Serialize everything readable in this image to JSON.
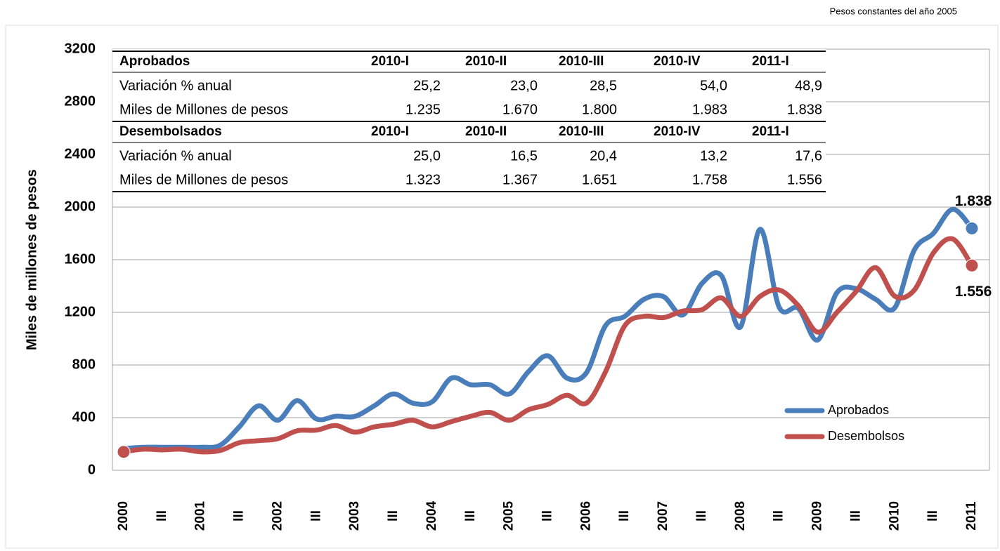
{
  "chart_data": {
    "type": "line",
    "subtitle": "Pesos constantes del año 2005",
    "y_label": "Miles de millones de pesos",
    "categories": [
      "2000",
      null,
      "III",
      null,
      "2001",
      null,
      "III",
      null,
      "2002",
      null,
      "III",
      null,
      "2003",
      null,
      "III",
      null,
      "2004",
      null,
      "III",
      null,
      "2005",
      null,
      "III",
      null,
      "2006",
      null,
      "III",
      null,
      "2007",
      null,
      "III",
      null,
      "2008",
      null,
      "III",
      null,
      "2009",
      null,
      "III",
      null,
      "2010",
      null,
      "III",
      null,
      "2011"
    ],
    "ylim": [
      0,
      3200
    ],
    "yticks": [
      0,
      400,
      800,
      1200,
      1600,
      2000,
      2400,
      2800,
      3200
    ],
    "grid": true,
    "legend": "lower right",
    "series": [
      {
        "name": "Aprobados",
        "color": "#4a7ebb",
        "values": [
          165,
          175,
          175,
          175,
          175,
          190,
          330,
          490,
          380,
          530,
          390,
          410,
          410,
          490,
          580,
          510,
          520,
          700,
          650,
          650,
          580,
          750,
          870,
          700,
          740,
          1100,
          1170,
          1300,
          1320,
          1180,
          1420,
          1480,
          1090,
          1830,
          1240,
          1230,
          990,
          1350,
          1380,
          1300,
          1235,
          1670,
          1800,
          1983,
          1838
        ],
        "value_labels": [
          null,
          null,
          null,
          null,
          null,
          null,
          null,
          null,
          null,
          null,
          null,
          null,
          null,
          null,
          null,
          null,
          null,
          null,
          null,
          null,
          null,
          null,
          null,
          null,
          null,
          null,
          null,
          null,
          null,
          null,
          null,
          null,
          null,
          null,
          null,
          null,
          null,
          null,
          null,
          null,
          null,
          null,
          null,
          null,
          "1.838"
        ]
      },
      {
        "name": "Desembolsos",
        "color": "#c0504d",
        "values": [
          140,
          160,
          155,
          160,
          140,
          150,
          210,
          225,
          240,
          300,
          305,
          340,
          290,
          330,
          350,
          380,
          330,
          370,
          410,
          440,
          380,
          460,
          500,
          570,
          510,
          750,
          1100,
          1170,
          1160,
          1210,
          1220,
          1310,
          1170,
          1320,
          1370,
          1250,
          1050,
          1200,
          1360,
          1540,
          1323,
          1367,
          1651,
          1758,
          1556
        ],
        "value_labels": [
          null,
          null,
          null,
          null,
          null,
          null,
          null,
          null,
          null,
          null,
          null,
          null,
          null,
          null,
          null,
          null,
          null,
          null,
          null,
          null,
          null,
          null,
          null,
          null,
          null,
          null,
          null,
          null,
          null,
          null,
          null,
          null,
          null,
          null,
          null,
          null,
          null,
          null,
          null,
          null,
          null,
          null,
          null,
          null,
          "1.556"
        ]
      }
    ]
  },
  "table": {
    "sections": [
      {
        "header": [
          "Aprobados",
          "2010-I",
          "2010-II",
          "2010-III",
          "2010-IV",
          "2011-I"
        ],
        "rows": [
          [
            "Variación % anual",
            "25,2",
            "23,0",
            "28,5",
            "54,0",
            "48,9"
          ],
          [
            "Miles de Millones de pesos",
            "1.235",
            "1.670",
            "1.800",
            "1.983",
            "1.838"
          ]
        ]
      },
      {
        "header": [
          "Desembolsados",
          "2010-I",
          "2010-II",
          "2010-III",
          "2010-IV",
          "2011-I"
        ],
        "rows": [
          [
            "Variación % anual",
            "25,0",
            "16,5",
            "20,4",
            "13,2",
            "17,6"
          ],
          [
            "Miles de Millones de pesos",
            "1.323",
            "1.367",
            "1.651",
            "1.758",
            "1.556"
          ]
        ]
      }
    ]
  }
}
